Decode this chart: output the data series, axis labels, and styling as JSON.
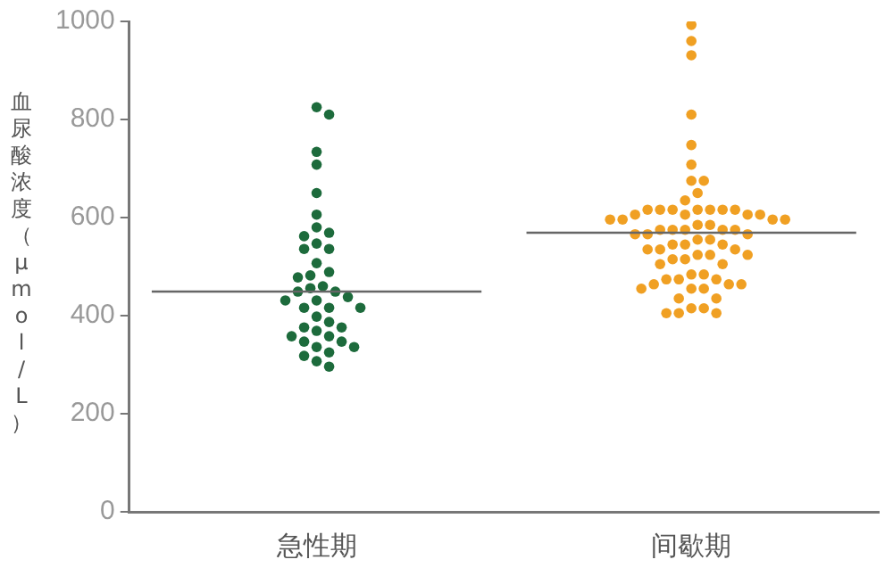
{
  "chart_data": {
    "type": "scatter",
    "ylabel": "血尿酸浓度（μmol/L）",
    "categories": [
      "急性期",
      "间歇期"
    ],
    "ylim": [
      0,
      1000
    ],
    "yticks": [
      0,
      200,
      400,
      600,
      800,
      1000
    ],
    "marker": "circle",
    "legend": false,
    "series": [
      {
        "color": "#1d6b3c",
        "x": [
          "急性期",
          "急性期",
          "急性期",
          "急性期",
          "急性期",
          "急性期",
          "急性期",
          "急性期",
          "急性期",
          "急性期",
          "急性期",
          "急性期",
          "急性期",
          "急性期",
          "急性期",
          "急性期",
          "急性期",
          "急性期",
          "急性期",
          "急性期",
          "急性期",
          "急性期",
          "急性期",
          "急性期",
          "急性期",
          "急性期",
          "急性期",
          "急性期",
          "急性期",
          "急性期",
          "急性期",
          "急性期",
          "急性期",
          "急性期",
          "急性期",
          "急性期",
          "急性期",
          "急性期",
          "急性期",
          "急性期",
          "急性期"
        ],
        "values": [
          810,
          825,
          734,
          708,
          650,
          606,
          569,
          580,
          547,
          562,
          536,
          536,
          507,
          489,
          482,
          478,
          460,
          456,
          449,
          449,
          438,
          416,
          431,
          431,
          416,
          416,
          398,
          387,
          369,
          376,
          376,
          358,
          358,
          347,
          347,
          336,
          336,
          318,
          325,
          307,
          296
        ]
      },
      {
        "color": "#f0a023",
        "x": [
          "间歇期",
          "间歇期",
          "间歇期",
          "间歇期",
          "间歇期",
          "间歇期",
          "间歇期",
          "间歇期",
          "间歇期",
          "间歇期",
          "间歇期",
          "间歇期",
          "间歇期",
          "间歇期",
          "间歇期",
          "间歇期",
          "间歇期",
          "间歇期",
          "间歇期",
          "间歇期",
          "间歇期",
          "间歇期",
          "间歇期",
          "间歇期",
          "间歇期",
          "间歇期",
          "间歇期",
          "间歇期",
          "间歇期",
          "间歇期",
          "间歇期",
          "间歇期",
          "间歇期",
          "间歇期",
          "间歇期",
          "间歇期",
          "间歇期",
          "间歇期",
          "间歇期",
          "间歇期",
          "间歇期",
          "间歇期",
          "间歇期",
          "间歇期",
          "间歇期",
          "间歇期",
          "间歇期",
          "间歇期",
          "间歇期",
          "间歇期",
          "间歇期",
          "间歇期",
          "间歇期",
          "间歇期",
          "间歇期",
          "间歇期",
          "间歇期",
          "间歇期",
          "间歇期",
          "间歇期",
          "间歇期",
          "间歇期",
          "间歇期",
          "间歇期",
          "间歇期",
          "间歇期",
          "间歇期",
          "间歇期"
        ],
        "values": [
          993,
          960,
          931,
          810,
          748,
          708,
          675,
          675,
          650,
          635,
          616,
          616,
          616,
          616,
          616,
          616,
          606,
          606,
          606,
          596,
          596,
          596,
          585,
          585,
          575,
          575,
          575,
          575,
          575,
          566,
          566,
          566,
          555,
          555,
          545,
          545,
          545,
          535,
          535,
          535,
          524,
          524,
          524,
          515,
          515,
          505,
          505,
          484,
          484,
          474,
          474,
          474,
          464,
          464,
          464,
          455,
          455,
          455,
          435,
          435,
          415,
          415,
          405,
          405,
          405,
          616,
          606,
          596
        ]
      }
    ],
    "ref_lines": [
      {
        "axis": "y",
        "value": 449,
        "color": "#666666"
      },
      {
        "axis": "y",
        "value": 569,
        "color": "#666666"
      }
    ]
  }
}
